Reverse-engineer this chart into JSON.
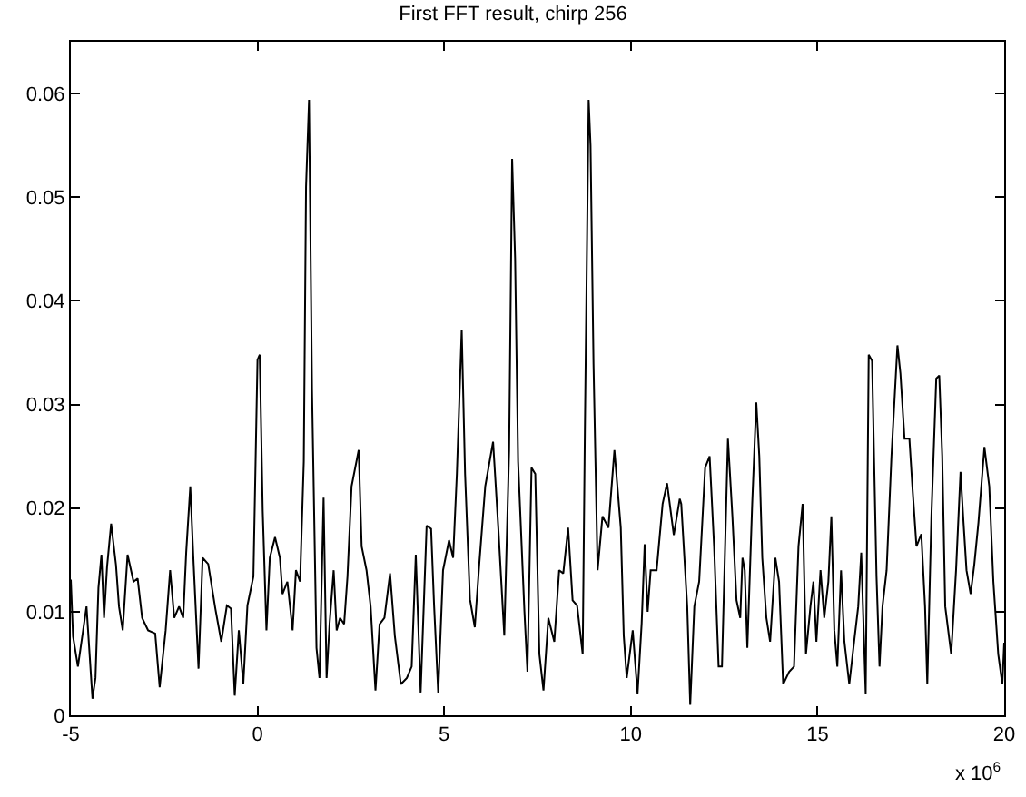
{
  "chart_data": {
    "type": "line",
    "title": "First FFT result, chirp 256",
    "x": [
      -5.0,
      -4.94,
      -4.81,
      -4.58,
      -4.42,
      -4.34,
      -4.26,
      -4.18,
      -4.11,
      -4.03,
      -3.92,
      -3.79,
      -3.71,
      -3.61,
      -3.48,
      -3.32,
      -3.21,
      -3.09,
      -2.93,
      -2.74,
      -2.62,
      -2.46,
      -2.34,
      -2.23,
      -2.1,
      -1.99,
      -1.91,
      -1.8,
      -1.71,
      -1.58,
      -1.47,
      -1.32,
      -1.13,
      -0.97,
      -0.82,
      -0.71,
      -0.61,
      -0.5,
      -0.38,
      -0.27,
      -0.11,
      0.0,
      0.06,
      0.14,
      0.24,
      0.33,
      0.47,
      0.6,
      0.67,
      0.8,
      0.94,
      1.03,
      1.14,
      1.24,
      1.3,
      1.38,
      1.46,
      1.58,
      1.66,
      1.77,
      1.85,
      1.93,
      2.04,
      2.12,
      2.21,
      2.32,
      2.41,
      2.52,
      2.71,
      2.79,
      2.92,
      3.03,
      3.16,
      3.27,
      3.4,
      3.55,
      3.68,
      3.84,
      4.0,
      4.13,
      4.24,
      4.37,
      4.53,
      4.65,
      4.73,
      4.84,
      4.97,
      5.13,
      5.24,
      5.34,
      5.47,
      5.56,
      5.69,
      5.82,
      5.94,
      6.1,
      6.31,
      6.45,
      6.61,
      6.74,
      6.82,
      6.9,
      6.98,
      7.15,
      7.23,
      7.34,
      7.44,
      7.55,
      7.66,
      7.79,
      7.95,
      8.08,
      8.19,
      8.32,
      8.44,
      8.56,
      8.71,
      8.77,
      8.87,
      8.92,
      9.0,
      9.11,
      9.24,
      9.4,
      9.56,
      9.73,
      9.81,
      9.89,
      10.05,
      10.18,
      10.29,
      10.37,
      10.45,
      10.53,
      10.69,
      10.85,
      10.97,
      11.15,
      11.31,
      11.35,
      11.51,
      11.59,
      11.7,
      11.83,
      11.99,
      12.11,
      12.23,
      12.35,
      12.44,
      12.6,
      12.72,
      12.83,
      12.93,
      12.99,
      13.05,
      13.12,
      13.25,
      13.36,
      13.44,
      13.52,
      13.63,
      13.73,
      13.87,
      13.97,
      14.08,
      14.24,
      14.37,
      14.49,
      14.6,
      14.69,
      14.81,
      14.89,
      14.97,
      15.08,
      15.18,
      15.29,
      15.37,
      15.45,
      15.53,
      15.63,
      15.72,
      15.85,
      15.98,
      16.09,
      16.17,
      16.29,
      16.37,
      16.46,
      16.58,
      16.66,
      16.74,
      16.85,
      16.98,
      17.14,
      17.22,
      17.33,
      17.46,
      17.54,
      17.65,
      17.78,
      17.88,
      17.94,
      18.05,
      18.18,
      18.26,
      18.34,
      18.42,
      18.58,
      18.71,
      18.83,
      18.91,
      18.99,
      19.1,
      19.2,
      19.31,
      19.47,
      19.6,
      19.71,
      19.84,
      19.95,
      20.0
    ],
    "series": [
      {
        "color": "#000000",
        "values": [
          0.0131,
          0.0076,
          0.0047,
          0.0105,
          0.0016,
          0.0036,
          0.0123,
          0.0155,
          0.0094,
          0.0143,
          0.0185,
          0.0145,
          0.0105,
          0.0082,
          0.0155,
          0.0129,
          0.0132,
          0.0094,
          0.0082,
          0.0079,
          0.0027,
          0.0082,
          0.014,
          0.0094,
          0.0105,
          0.0094,
          0.0157,
          0.0221,
          0.0146,
          0.0045,
          0.0152,
          0.0146,
          0.0103,
          0.0071,
          0.0106,
          0.0103,
          0.0019,
          0.0082,
          0.003,
          0.0106,
          0.0134,
          0.0343,
          0.0348,
          0.0197,
          0.0082,
          0.0152,
          0.0172,
          0.0152,
          0.0117,
          0.0129,
          0.0082,
          0.014,
          0.0129,
          0.0245,
          0.051,
          0.0594,
          0.0314,
          0.0065,
          0.0036,
          0.021,
          0.0036,
          0.0088,
          0.014,
          0.0082,
          0.0094,
          0.0088,
          0.0134,
          0.0221,
          0.0256,
          0.0163,
          0.014,
          0.0105,
          0.0024,
          0.0088,
          0.0094,
          0.0137,
          0.0076,
          0.003,
          0.0036,
          0.0047,
          0.0155,
          0.0022,
          0.0183,
          0.018,
          0.0106,
          0.0022,
          0.014,
          0.0169,
          0.0152,
          0.0233,
          0.0372,
          0.0233,
          0.0112,
          0.0085,
          0.0146,
          0.0221,
          0.0264,
          0.0181,
          0.0077,
          0.0256,
          0.0537,
          0.0441,
          0.0245,
          0.01,
          0.0042,
          0.0239,
          0.0233,
          0.0059,
          0.0024,
          0.0094,
          0.0071,
          0.014,
          0.0137,
          0.0181,
          0.0111,
          0.0106,
          0.0059,
          0.0279,
          0.0594,
          0.055,
          0.0339,
          0.014,
          0.0192,
          0.0181,
          0.0256,
          0.0181,
          0.0077,
          0.0036,
          0.0082,
          0.0021,
          0.0089,
          0.0165,
          0.01,
          0.014,
          0.014,
          0.0204,
          0.0224,
          0.0174,
          0.0209,
          0.0204,
          0.0105,
          0.001,
          0.0105,
          0.0129,
          0.0239,
          0.025,
          0.0163,
          0.0047,
          0.0047,
          0.0267,
          0.0192,
          0.0111,
          0.0094,
          0.0152,
          0.014,
          0.0065,
          0.0204,
          0.0302,
          0.025,
          0.0152,
          0.0094,
          0.0071,
          0.0152,
          0.0129,
          0.003,
          0.0042,
          0.0047,
          0.0163,
          0.0204,
          0.0059,
          0.0105,
          0.0129,
          0.0071,
          0.014,
          0.0094,
          0.0129,
          0.0192,
          0.0082,
          0.0047,
          0.014,
          0.0071,
          0.003,
          0.0071,
          0.0105,
          0.0157,
          0.0021,
          0.0348,
          0.0342,
          0.0134,
          0.0047,
          0.0105,
          0.014,
          0.025,
          0.0357,
          0.033,
          0.0267,
          0.0267,
          0.0221,
          0.0163,
          0.0175,
          0.0105,
          0.003,
          0.0192,
          0.0325,
          0.0328,
          0.025,
          0.0105,
          0.0059,
          0.014,
          0.0235,
          0.0186,
          0.014,
          0.0117,
          0.0146,
          0.0186,
          0.0259,
          0.0221,
          0.0129,
          0.0059,
          0.003,
          0.007
        ]
      }
    ],
    "xlim": [
      -5,
      20
    ],
    "ylim": [
      0,
      0.065
    ],
    "xticks": [
      -5,
      0,
      5,
      10,
      15,
      20
    ],
    "yticks": [
      0,
      0.01,
      0.02,
      0.03,
      0.04,
      0.05,
      0.06
    ],
    "annotations": [
      "x 10$^{6}$"
    ]
  }
}
